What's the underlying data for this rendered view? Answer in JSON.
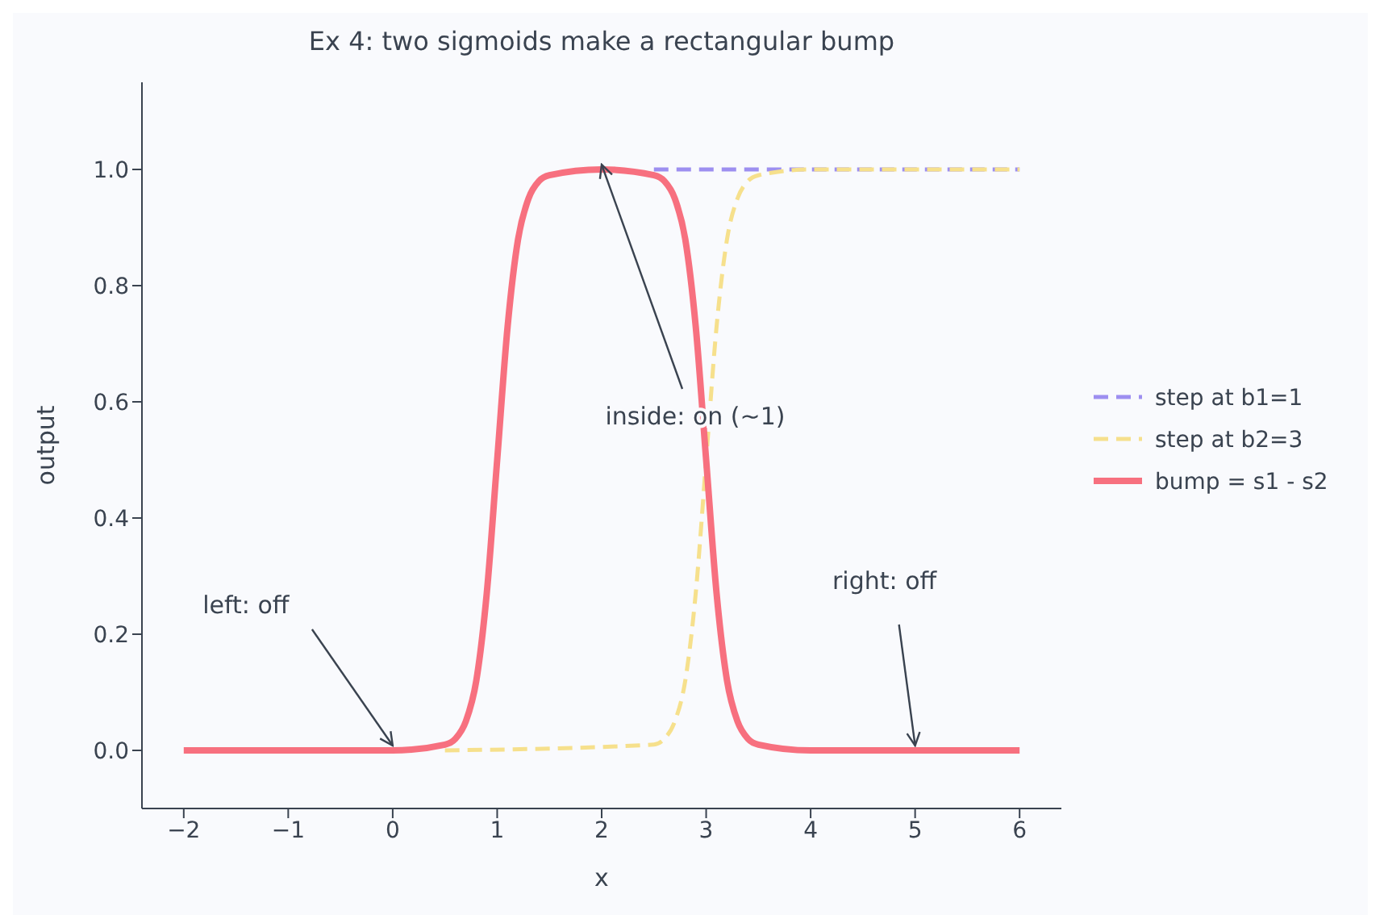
{
  "chart_data": {
    "type": "line",
    "title": "Ex 4: two sigmoids make a rectangular bump",
    "xlabel": "x",
    "ylabel": "output",
    "xlim": [
      -2.4,
      6.4
    ],
    "xticks": [
      {
        "value": -2,
        "label": "−2"
      },
      {
        "value": -1,
        "label": "−1"
      },
      0,
      1,
      2,
      3,
      4,
      5,
      6
    ],
    "ylim": [
      -0.1,
      1.15
    ],
    "yticks": [
      {
        "value": 0,
        "label": "0.0"
      },
      {
        "value": 0.2,
        "label": "0.2"
      },
      {
        "value": 0.4,
        "label": "0.4"
      },
      {
        "value": 0.6,
        "label": "0.6"
      },
      {
        "value": 0.8,
        "label": "0.8"
      },
      {
        "value": 1,
        "label": "1.0"
      }
    ],
    "grid": false,
    "legend": "right",
    "marker": "none",
    "series": [
      {
        "name": "step at b1=1",
        "color": "#9d8ff0",
        "line_style": "dashed",
        "x": [
          2.5,
          6
        ],
        "values": [
          1,
          1
        ]
      },
      {
        "name": "step at b2=3",
        "color": "#f6e08c",
        "line_style": "dashed",
        "x": [
          0.5,
          2.5,
          2.6,
          2.7,
          2.8,
          2.9,
          3.0,
          3.1,
          3.2,
          3.3,
          3.4,
          3.5,
          4,
          6
        ],
        "values": [
          0,
          0.01,
          0.02,
          0.05,
          0.12,
          0.27,
          0.5,
          0.73,
          0.88,
          0.95,
          0.98,
          0.99,
          1,
          1
        ]
      },
      {
        "name": "bump = s1 - s2",
        "color": "#f7707f",
        "line_style": "solid",
        "x": [
          -2,
          0,
          0.5,
          0.6,
          0.7,
          0.8,
          0.9,
          1.0,
          1.1,
          1.2,
          1.3,
          1.4,
          1.5,
          2,
          2.5,
          2.6,
          2.7,
          2.8,
          2.9,
          3.0,
          3.1,
          3.2,
          3.3,
          3.4,
          3.5,
          4,
          6
        ],
        "values": [
          0,
          0,
          0.01,
          0.02,
          0.05,
          0.12,
          0.27,
          0.5,
          0.73,
          0.88,
          0.95,
          0.98,
          0.99,
          1,
          0.99,
          0.98,
          0.95,
          0.88,
          0.73,
          0.5,
          0.27,
          0.12,
          0.05,
          0.02,
          0.01,
          0,
          0
        ]
      }
    ],
    "annotations": [
      {
        "text": "left: off",
        "x": 0,
        "y": 0
      },
      {
        "text": "inside: on (~1)",
        "x": 2,
        "y": 1
      },
      {
        "text": "right: off",
        "x": 5,
        "y": 0
      }
    ]
  }
}
